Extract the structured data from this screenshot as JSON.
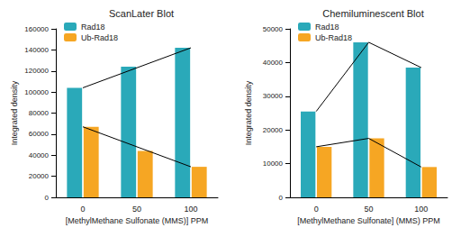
{
  "chart_data": [
    {
      "type": "bar",
      "title": "ScanLater Blot",
      "x_label": "[MethylMethane Sulfonate (MMS)] PPM",
      "y_label": "Integrated density",
      "categories": [
        "0",
        "50",
        "100"
      ],
      "series": [
        {
          "name": "Rad18",
          "color": "#2aa9b9",
          "values": [
            104000,
            124000,
            142000
          ]
        },
        {
          "name": "Ub-Rad18",
          "color": "#f6a623",
          "values": [
            67000,
            44000,
            29000
          ]
        },
        {
          "type": "line",
          "color": "#000000",
          "values": [
            104000,
            123000,
            142000
          ]
        },
        {
          "type": "line",
          "color": "#000000",
          "values": [
            67000,
            48000,
            29000
          ]
        }
      ],
      "ylim": [
        0,
        160000
      ],
      "yticks": [
        0,
        20000,
        40000,
        60000,
        80000,
        100000,
        120000,
        140000,
        160000
      ],
      "legend": "upper left",
      "grid": false
    },
    {
      "type": "bar",
      "title": "Chemiluminescent Blot",
      "x_label": "[MethylMethane Sulfonate] (MMS) PPM",
      "y_label": "Integrated density",
      "categories": [
        "0",
        "50",
        "100"
      ],
      "series": [
        {
          "name": "Rad18",
          "color": "#2aa9b9",
          "values": [
            25500,
            46000,
            38500
          ]
        },
        {
          "name": "Ub-Rad18",
          "color": "#f6a623",
          "values": [
            15000,
            17500,
            9000
          ]
        },
        {
          "type": "line",
          "color": "#000000",
          "values": [
            25500,
            46000,
            38500
          ]
        },
        {
          "type": "line",
          "color": "#000000",
          "values": [
            15000,
            17500,
            9000
          ]
        }
      ],
      "ylim": [
        0,
        50000
      ],
      "yticks": [
        0,
        10000,
        20000,
        30000,
        40000,
        50000
      ],
      "legend": "upper left",
      "grid": false
    }
  ]
}
